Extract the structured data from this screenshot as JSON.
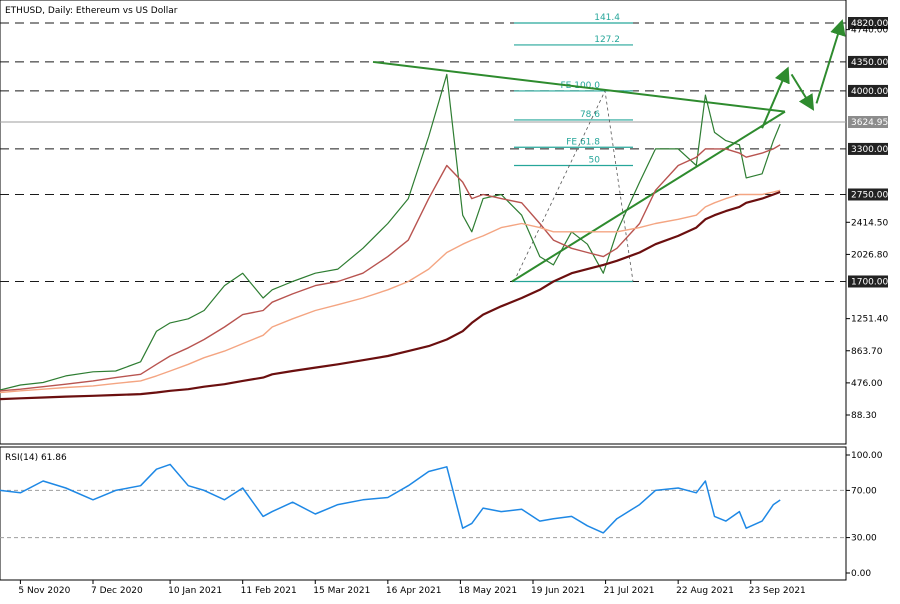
{
  "chart_data": [
    {
      "type": "line",
      "title": "ETHUSD, Daily:  Ethereum vs US Dollar",
      "instrument": "ETHUSD",
      "timeframe": "Daily",
      "description": "Ethereum vs US Dollar",
      "x_dates": [
        "2020-10-27",
        "2020-11-05",
        "2020-11-15",
        "2020-11-25",
        "2020-12-07",
        "2020-12-17",
        "2020-12-28",
        "2021-01-04",
        "2021-01-10",
        "2021-01-18",
        "2021-01-25",
        "2021-02-03",
        "2021-02-11",
        "2021-02-20",
        "2021-02-24",
        "2021-03-05",
        "2021-03-15",
        "2021-03-25",
        "2021-04-05",
        "2021-04-16",
        "2021-04-25",
        "2021-05-04",
        "2021-05-12",
        "2021-05-19",
        "2021-05-23",
        "2021-05-28",
        "2021-06-05",
        "2021-06-14",
        "2021-06-22",
        "2021-06-28",
        "2021-07-06",
        "2021-07-13",
        "2021-07-20",
        "2021-07-26",
        "2021-08-05",
        "2021-08-12",
        "2021-08-22",
        "2021-08-30",
        "2021-09-03",
        "2021-09-07",
        "2021-09-12",
        "2021-09-18",
        "2021-09-21",
        "2021-09-28",
        "2021-10-03",
        "2021-10-06"
      ],
      "series": [
        {
          "name": "ETHUSD",
          "color": "#2e7d32",
          "values": [
            390,
            450,
            480,
            560,
            610,
            620,
            730,
            1100,
            1200,
            1250,
            1350,
            1650,
            1800,
            1500,
            1600,
            1700,
            1800,
            1850,
            2100,
            2400,
            2700,
            3450,
            4200,
            2500,
            2300,
            2700,
            2750,
            2500,
            2000,
            1900,
            2300,
            2150,
            1800,
            2300,
            2900,
            3300,
            3300,
            3100,
            3950,
            3500,
            3400,
            3350,
            2950,
            3000,
            3400,
            3600
          ]
        },
        {
          "values": [
            380,
            400,
            430,
            460,
            500,
            540,
            580,
            700,
            800,
            900,
            1000,
            1150,
            1300,
            1350,
            1450,
            1550,
            1650,
            1700,
            1800,
            2000,
            2200,
            2700,
            3100,
            2900,
            2700,
            2750,
            2700,
            2650,
            2400,
            2200,
            2100,
            2050,
            2000,
            2100,
            2400,
            2800,
            3100,
            3200,
            3300,
            3300,
            3300,
            3250,
            3200,
            3250,
            3300,
            3350
          ]
        },
        {
          "values": [
            360,
            380,
            400,
            420,
            440,
            470,
            500,
            560,
            620,
            700,
            780,
            860,
            950,
            1050,
            1150,
            1250,
            1350,
            1420,
            1500,
            1600,
            1700,
            1850,
            2050,
            2150,
            2200,
            2250,
            2350,
            2400,
            2350,
            2300,
            2300,
            2300,
            2300,
            2300,
            2350,
            2400,
            2450,
            2500,
            2600,
            2650,
            2700,
            2750,
            2750,
            2750,
            2780,
            2800
          ]
        },
        {
          "values": [
            280,
            290,
            300,
            310,
            320,
            330,
            340,
            360,
            380,
            400,
            430,
            460,
            500,
            540,
            580,
            620,
            660,
            700,
            750,
            800,
            860,
            920,
            1000,
            1100,
            1200,
            1300,
            1400,
            1500,
            1600,
            1700,
            1800,
            1850,
            1900,
            1950,
            2050,
            2150,
            2250,
            2350,
            2450,
            2500,
            2550,
            2600,
            2650,
            2700,
            2750,
            2780
          ]
        }
      ],
      "y_price_labels": [
        "4820.00",
        "4740.00",
        "4350.00",
        "4000.00",
        "3624.95",
        "3300.00",
        "2750.00",
        "2414.50",
        "2026.80",
        "1700.00",
        "1251.40",
        "863.70",
        "476.00",
        "88.30"
      ],
      "x_tick_labels": [
        "5 Nov 2020",
        "7 Dec 2020",
        "10 Jan 2021",
        "11 Feb 2021",
        "15 Mar 2021",
        "16 Apr 2021",
        "18 May 2021",
        "19 Jun 2021",
        "21 Jul 2021",
        "22 Aug 2021",
        "23 Sep 2021"
      ],
      "horizontal_levels": [
        4820,
        4350,
        4000,
        3300,
        2750,
        1700
      ],
      "current_price": 3624.95,
      "fibonacci_labels": [
        "141.4",
        "127.2",
        "FE 100.0",
        "78.6",
        "FE 61.8",
        "50"
      ],
      "fibonacci_values": [
        141.4,
        127.2,
        100.0,
        78.6,
        61.8,
        50
      ],
      "trendline_color": "#2e8b2e",
      "fibo_color": "#26a69a",
      "level_color": "#1a1a1a",
      "annotation_arrows": [
        {
          "from": "2021-09-28",
          "from_price": 3550,
          "to": "2021-10-09",
          "to_price": 4250
        },
        {
          "from": "2021-10-11",
          "from_price": 4200,
          "to": "2021-10-20",
          "to_price": 3800
        },
        {
          "from": "2021-10-22",
          "from_price": 3850,
          "to": "2021-11-02",
          "to_price": 4820
        }
      ]
    },
    {
      "type": "line",
      "title": "RSI(14) 61.86",
      "indicator": "RSI(14)",
      "last_value": 61.86,
      "x_dates": [
        "2020-10-27",
        "2020-11-05",
        "2020-11-15",
        "2020-11-25",
        "2020-12-07",
        "2020-12-17",
        "2020-12-28",
        "2021-01-04",
        "2021-01-10",
        "2021-01-18",
        "2021-01-25",
        "2021-02-03",
        "2021-02-11",
        "2021-02-20",
        "2021-02-24",
        "2021-03-05",
        "2021-03-15",
        "2021-03-25",
        "2021-04-05",
        "2021-04-16",
        "2021-04-25",
        "2021-05-04",
        "2021-05-12",
        "2021-05-19",
        "2021-05-23",
        "2021-05-28",
        "2021-06-05",
        "2021-06-14",
        "2021-06-22",
        "2021-06-28",
        "2021-07-06",
        "2021-07-13",
        "2021-07-20",
        "2021-07-26",
        "2021-08-05",
        "2021-08-12",
        "2021-08-22",
        "2021-08-30",
        "2021-09-03",
        "2021-09-07",
        "2021-09-12",
        "2021-09-18",
        "2021-09-21",
        "2021-09-28",
        "2021-10-03",
        "2021-10-06"
      ],
      "series": [
        {
          "name": "RSI(14)",
          "color": "#1e88e5",
          "values": [
            70,
            68,
            78,
            72,
            62,
            70,
            74,
            88,
            92,
            74,
            70,
            62,
            72,
            48,
            52,
            60,
            50,
            58,
            62,
            64,
            74,
            86,
            90,
            38,
            42,
            55,
            52,
            54,
            44,
            46,
            48,
            40,
            34,
            46,
            58,
            70,
            72,
            68,
            78,
            48,
            44,
            52,
            38,
            44,
            58,
            61.86
          ]
        }
      ],
      "y_tick_labels": [
        "100.00",
        "70.00",
        "30.00",
        "0.00"
      ],
      "ylim": [
        0,
        100
      ],
      "guide_levels": [
        70,
        30
      ]
    }
  ]
}
